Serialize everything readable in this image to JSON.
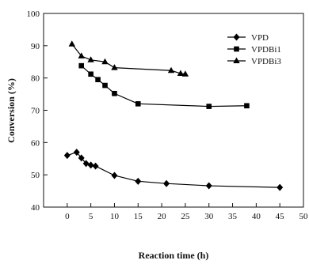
{
  "chart_data": {
    "type": "line",
    "xlabel": "Reaction time (h)",
    "ylabel": "Conversion (%)",
    "xlim": [
      -5,
      50
    ],
    "ylim": [
      40,
      100
    ],
    "xticks": [
      "0",
      "5",
      "10",
      "15",
      "20",
      "25",
      "30",
      "35",
      "40",
      "45",
      "50"
    ],
    "yticks": [
      "40",
      "50",
      "60",
      "70",
      "80",
      "90",
      "100"
    ],
    "grid": false,
    "legend_position": "top-right",
    "series": [
      {
        "name": "VPD",
        "marker": "diamond",
        "color": "#000000",
        "x": [
          0,
          2,
          3,
          4,
          5,
          6,
          10,
          15,
          21,
          30,
          45
        ],
        "y": [
          56,
          57,
          55.2,
          53.5,
          53,
          52.7,
          49.8,
          48,
          47.3,
          46.6,
          46.1
        ]
      },
      {
        "name": "VPDBi1",
        "marker": "square",
        "color": "#000000",
        "x": [
          3,
          5,
          6.5,
          8,
          10,
          15,
          30,
          38
        ],
        "y": [
          83.8,
          81.2,
          79.5,
          77.7,
          75.2,
          72,
          71.2,
          71.4
        ]
      },
      {
        "name": "VPDBi3",
        "marker": "triangle",
        "color": "#000000",
        "x": [
          1,
          3,
          5,
          8,
          10,
          22,
          24,
          25
        ],
        "y": [
          90.5,
          86.8,
          85.6,
          85,
          83.2,
          82.3,
          81.4,
          81.2
        ]
      }
    ]
  }
}
